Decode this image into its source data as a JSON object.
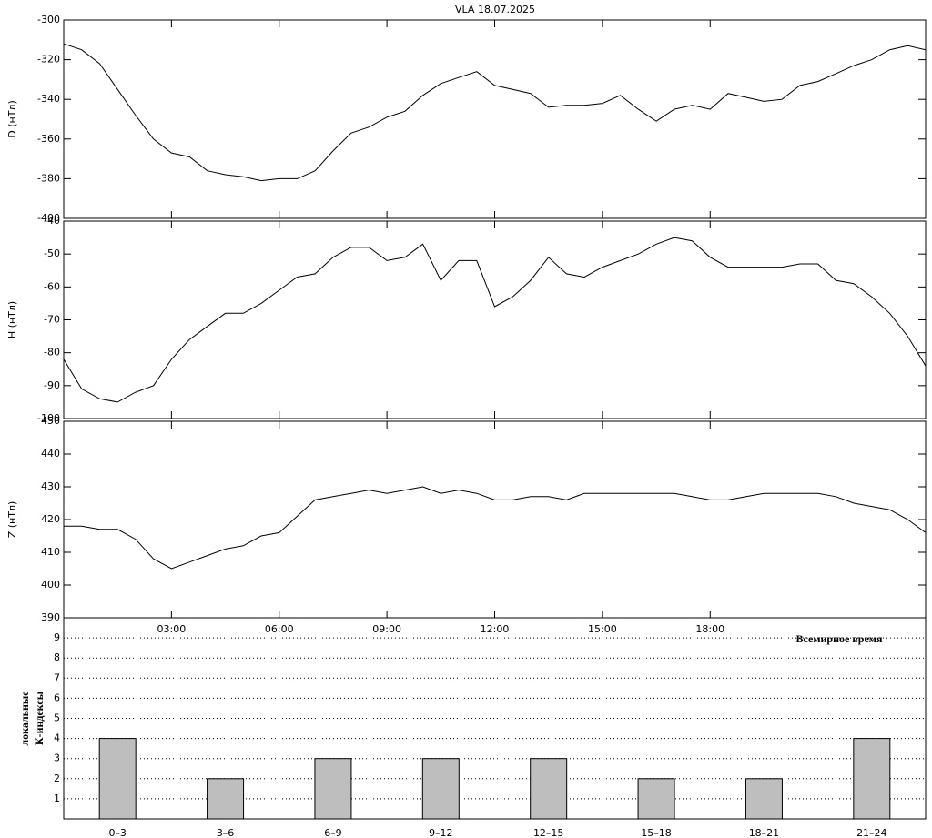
{
  "chart_data": [
    {
      "type": "line",
      "title": "VLA   18.07.2025",
      "ylabel": "D (нТл)",
      "color": "#000000",
      "xlim": [
        0,
        24
      ],
      "ylim": [
        -400,
        -300
      ],
      "yticks": [
        -400,
        -380,
        -360,
        -340,
        -320,
        -300
      ],
      "x": [
        0,
        0.5,
        1,
        1.5,
        2,
        2.5,
        3,
        3.5,
        4,
        4.5,
        5,
        5.5,
        6,
        6.5,
        7,
        7.5,
        8,
        8.5,
        9,
        9.5,
        10,
        10.5,
        11,
        11.5,
        12,
        12.5,
        13,
        13.5,
        14,
        14.5,
        15,
        15.5,
        16,
        16.5,
        17,
        17.5,
        18,
        18.5,
        19,
        19.5,
        20,
        20.5,
        21,
        21.5,
        22,
        22.5,
        23,
        23.5,
        24
      ],
      "values": [
        -312,
        -315,
        -322,
        -335,
        -348,
        -360,
        -367,
        -369,
        -376,
        -378,
        -379,
        -381,
        -380,
        -380,
        -376,
        -366,
        -357,
        -354,
        -349,
        -346,
        -338,
        -332,
        -329,
        -326,
        -333,
        -335,
        -337,
        -344,
        -343,
        -343,
        -342,
        -338,
        -345,
        -351,
        -345,
        -343,
        -345,
        -337,
        -339,
        -341,
        -340,
        -333,
        -331,
        -327,
        -323,
        -320,
        -315,
        -313,
        -315
      ]
    },
    {
      "type": "line",
      "ylabel": "H (нТл)",
      "color": "#000000",
      "xlim": [
        0,
        24
      ],
      "ylim": [
        -100,
        -40
      ],
      "yticks": [
        -100,
        -90,
        -80,
        -70,
        -60,
        -50,
        -40
      ],
      "x": [
        0,
        0.5,
        1,
        1.5,
        2,
        2.5,
        3,
        3.5,
        4,
        4.5,
        5,
        5.5,
        6,
        6.5,
        7,
        7.5,
        8,
        8.5,
        9,
        9.5,
        10,
        10.5,
        11,
        11.5,
        12,
        12.5,
        13,
        13.5,
        14,
        14.5,
        15,
        15.5,
        16,
        16.5,
        17,
        17.5,
        18,
        18.5,
        19,
        19.5,
        20,
        20.5,
        21,
        21.5,
        22,
        22.5,
        23,
        23.5,
        24
      ],
      "values": [
        -82,
        -91,
        -94,
        -95,
        -92,
        -90,
        -82,
        -76,
        -72,
        -68,
        -68,
        -65,
        -61,
        -57,
        -56,
        -51,
        -48,
        -48,
        -52,
        -51,
        -47,
        -58,
        -52,
        -52,
        -66,
        -63,
        -58,
        -51,
        -56,
        -57,
        -54,
        -52,
        -50,
        -47,
        -45,
        -46,
        -51,
        -54,
        -54,
        -54,
        -54,
        -53,
        -53,
        -58,
        -59,
        -63,
        -68,
        -75,
        -84
      ]
    },
    {
      "type": "line",
      "ylabel": "Z (нТл)",
      "color": "#000000",
      "xlim": [
        0,
        24
      ],
      "ylim": [
        390,
        450
      ],
      "yticks": [
        390,
        400,
        410,
        420,
        430,
        440,
        450
      ],
      "xticks": [
        {
          "value": 3,
          "label": "03:00"
        },
        {
          "value": 6,
          "label": "06:00"
        },
        {
          "value": 9,
          "label": "09:00"
        },
        {
          "value": 12,
          "label": "12:00"
        },
        {
          "value": 15,
          "label": "15:00"
        },
        {
          "value": 18,
          "label": "18:00"
        }
      ],
      "xlabel": "Всемирное время",
      "x": [
        0,
        0.5,
        1,
        1.5,
        2,
        2.5,
        3,
        3.5,
        4,
        4.5,
        5,
        5.5,
        6,
        6.5,
        7,
        7.5,
        8,
        8.5,
        9,
        9.5,
        10,
        10.5,
        11,
        11.5,
        12,
        12.5,
        13,
        13.5,
        14,
        14.5,
        15,
        15.5,
        16,
        16.5,
        17,
        17.5,
        18,
        18.5,
        19,
        19.5,
        20,
        20.5,
        21,
        21.5,
        22,
        22.5,
        23,
        23.5,
        24
      ],
      "values": [
        418,
        418,
        417,
        417,
        414,
        408,
        405,
        407,
        409,
        411,
        412,
        415,
        416,
        421,
        426,
        427,
        428,
        429,
        428,
        429,
        430,
        428,
        429,
        428,
        426,
        426,
        427,
        427,
        426,
        428,
        428,
        428,
        428,
        428,
        428,
        427,
        426,
        426,
        427,
        428,
        428,
        428,
        428,
        427,
        425,
        424,
        423,
        420,
        416
      ]
    },
    {
      "type": "bar",
      "ylabel": [
        "локальные",
        "К-индексы"
      ],
      "color": "#bebebe",
      "grid": true,
      "ylim": [
        0,
        10
      ],
      "yticks": [
        1,
        2,
        3,
        4,
        5,
        6,
        7,
        8,
        9
      ],
      "categories": [
        "0–3",
        "3–6",
        "6–9",
        "9–12",
        "12–15",
        "15–18",
        "18–21",
        "21–24"
      ],
      "values": [
        4,
        2,
        3,
        3,
        3,
        2,
        2,
        4
      ]
    }
  ]
}
